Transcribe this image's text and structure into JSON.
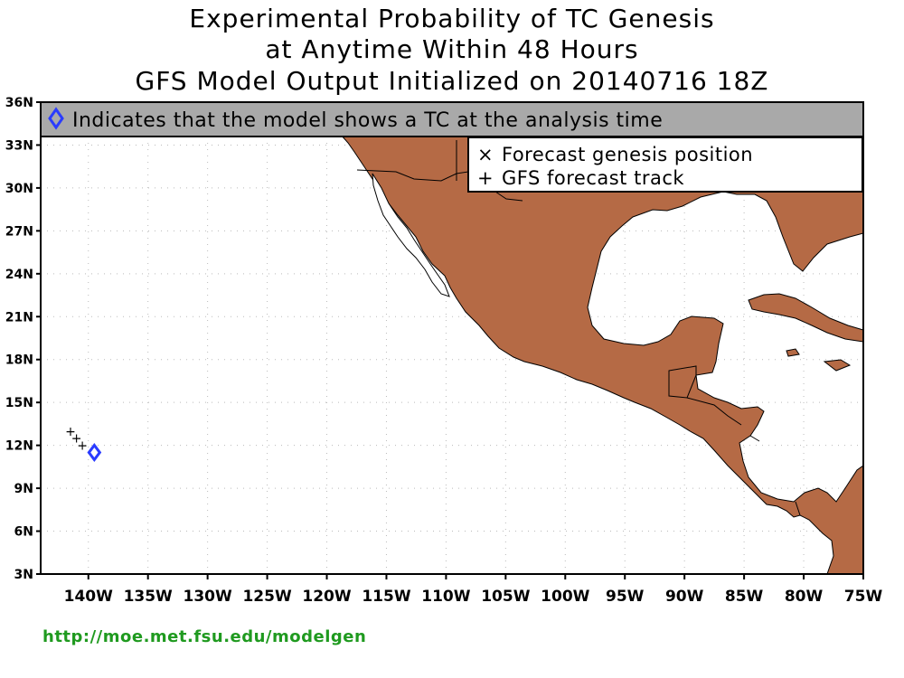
{
  "title": {
    "line1": "Experimental Probability of TC Genesis",
    "line2": "at Anytime Within 48 Hours",
    "line3": "GFS Model Output Initialized on 20140716 18Z"
  },
  "banner": {
    "text": "Indicates that the model shows a TC at the analysis time",
    "diamond_color": "#2a3cff"
  },
  "legend": {
    "items": [
      {
        "symbol": "×",
        "label": "Forecast genesis position"
      },
      {
        "symbol": "+",
        "label": "GFS forecast track"
      }
    ]
  },
  "map": {
    "land_color": "#b56a45",
    "lat_range": [
      3,
      36
    ],
    "lon_range": [
      -144,
      -75
    ],
    "lat_ticks": [
      "3N",
      "6N",
      "9N",
      "12N",
      "15N",
      "18N",
      "21N",
      "24N",
      "27N",
      "30N",
      "33N",
      "36N"
    ],
    "lon_ticks": [
      "140W",
      "135W",
      "130W",
      "125W",
      "120W",
      "115W",
      "110W",
      "105W",
      "100W",
      "95W",
      "90W",
      "85W",
      "80W",
      "75W"
    ],
    "analysis_tc": {
      "lat": 11.5,
      "lon": -139.5
    },
    "track": [
      {
        "lat": 13.0,
        "lon": -141.5
      },
      {
        "lat": 12.5,
        "lon": -141.0
      },
      {
        "lat": 12.0,
        "lon": -140.5
      }
    ]
  },
  "footer": {
    "url": "http://moe.met.fsu.edu/modelgen"
  }
}
